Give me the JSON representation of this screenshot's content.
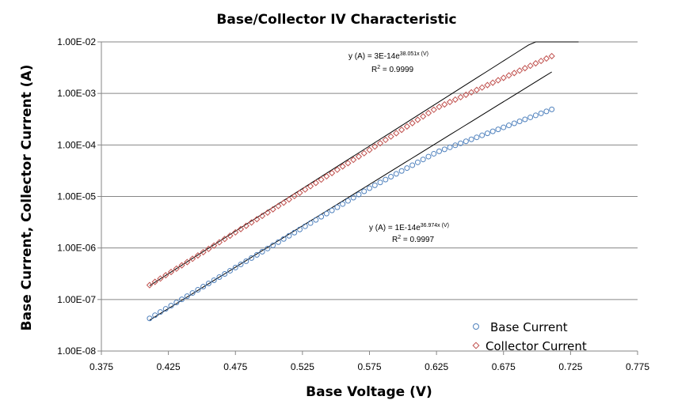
{
  "chart_data": {
    "type": "scatter",
    "title": "Base/Collector IV Characteristic",
    "xlabel": "Base Voltage (V)",
    "ylabel": "Base Current, Collector Current (A)",
    "xlim": [
      0.375,
      0.775
    ],
    "ylim": [
      1e-08,
      0.01
    ],
    "yscale": "log",
    "x_ticks": [
      "0.375",
      "0.425",
      "0.475",
      "0.525",
      "0.575",
      "0.625",
      "0.675",
      "0.725",
      "0.775"
    ],
    "y_ticks": [
      "1.00E-02",
      "1.00E-03",
      "1.00E-04",
      "1.00E-05",
      "1.00E-06",
      "1.00E-07",
      "1.00E-08"
    ],
    "grid": "horizontal",
    "legend_position": "bottom-right",
    "x_start": 0.411,
    "x_end": 0.711,
    "x_step": 0.004,
    "series": [
      {
        "name": "Base Current",
        "marker": "circle",
        "color": "#4f81bd",
        "knees": [
          [
            0.411,
            4.3e-08
          ],
          [
            0.575,
            1.45e-05
          ],
          [
            0.625,
            7.2e-05
          ],
          [
            0.711,
            0.00049
          ]
        ]
      },
      {
        "name": "Collector Current",
        "marker": "diamond",
        "color": "#c0504d",
        "knees": [
          [
            0.411,
            1.9e-07
          ],
          [
            0.575,
            8e-05
          ],
          [
            0.625,
            0.00052
          ],
          [
            0.711,
            0.0053
          ]
        ]
      }
    ],
    "trendlines": [
      {
        "series": "Collector Current",
        "a": 3e-14,
        "b": 38.051,
        "x_range": [
          0.411,
          0.731
        ],
        "equation": "y (A) = 3E-14e",
        "exponent": "38.051x (V)",
        "r2_label": "R",
        "r2_value": " = 0.9999"
      },
      {
        "series": "Base Current",
        "a": 1e-14,
        "b": 36.974,
        "x_range": [
          0.411,
          0.711
        ],
        "equation": "y (A) = 1E-14e",
        "exponent": "36.974x (V)",
        "r2_label": "R",
        "r2_value": " = 0.9997"
      }
    ]
  }
}
